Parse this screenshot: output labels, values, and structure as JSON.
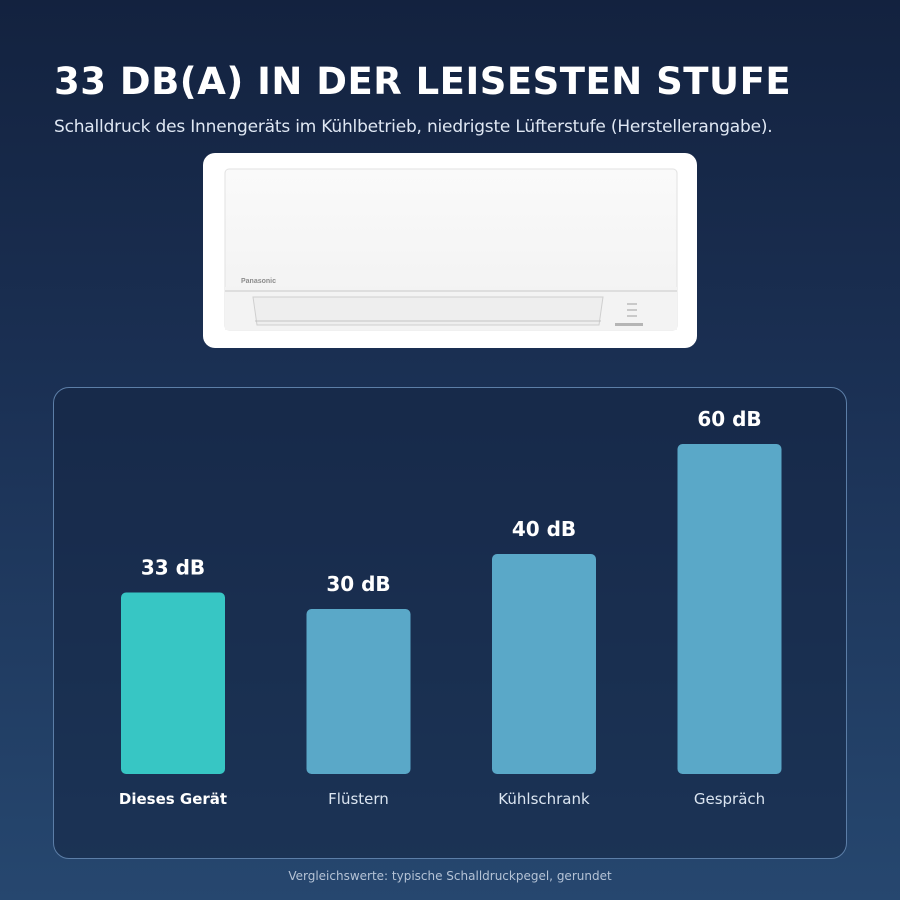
{
  "header": {
    "title": "33 DB(A) IN DER LEISESTEN STUFE",
    "subtitle": "Schalldruck des Innengeräts im Kühlbetrieb, niedrigste Lüfterstufe (Herstellerangabe)."
  },
  "product": {
    "brand": "Panasonic"
  },
  "chart_data": {
    "type": "bar",
    "categories": [
      "Dieses Gerät",
      "Flüstern",
      "Kühlschrank",
      "Gespräch"
    ],
    "values": [
      33,
      30,
      40,
      60
    ],
    "value_labels": [
      "33 dB",
      "30 dB",
      "40 dB",
      "60 dB"
    ],
    "highlighted_category": "Dieses Gerät",
    "ylim": [
      0,
      60
    ],
    "grid": false,
    "colors": {
      "highlight": "#37c6c4",
      "default": "#5aa8c8"
    }
  },
  "footnote": "Vergleichswerte: typische Schalldruckpegel, gerundet"
}
